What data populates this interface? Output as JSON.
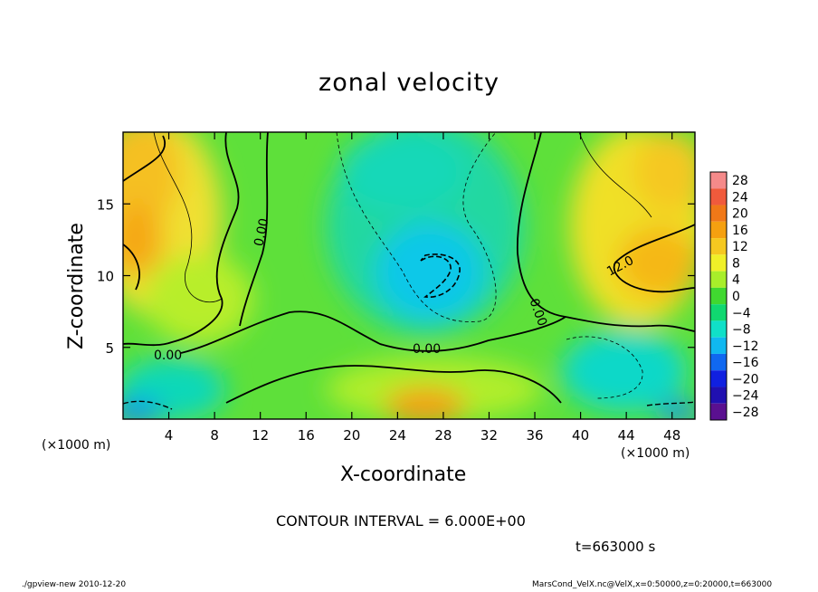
{
  "chart_data": {
    "type": "heatmap",
    "title": "zonal velocity",
    "xlabel": "X-coordinate",
    "ylabel": "Z-coordinate",
    "x_unit_label": "(×1000 m)",
    "xlim": [
      0,
      50
    ],
    "ylim": [
      0,
      20
    ],
    "x_ticks": [
      4,
      8,
      12,
      16,
      20,
      24,
      28,
      32,
      36,
      40,
      44,
      48
    ],
    "y_ticks": [
      5,
      10,
      15
    ],
    "colorbar": {
      "levels": [
        28,
        24,
        20,
        16,
        12,
        8,
        4,
        0,
        -4,
        -8,
        -12,
        -16,
        -20,
        -24,
        -28
      ],
      "colors": [
        "#f58a8a",
        "#f05a3c",
        "#f07818",
        "#f5a010",
        "#f5c820",
        "#f0f028",
        "#a8ee2a",
        "#40d830",
        "#10d870",
        "#10e0c8",
        "#10b8f0",
        "#1068f0",
        "#1020e0",
        "#2010b0",
        "#5a1090"
      ]
    },
    "contour_labels": [
      "0.00",
      "0.00",
      "0.00",
      "0.00",
      "12.0"
    ],
    "contour_interval_text": "CONTOUR INTERVAL = 6.000E+00",
    "time_text": "t=663000 s"
  },
  "footer": {
    "left": "./gpview-new  2010-12-20",
    "right": "MarsCond_VelX.nc@VelX,x=0:50000,z=0:20000,t=663000"
  }
}
